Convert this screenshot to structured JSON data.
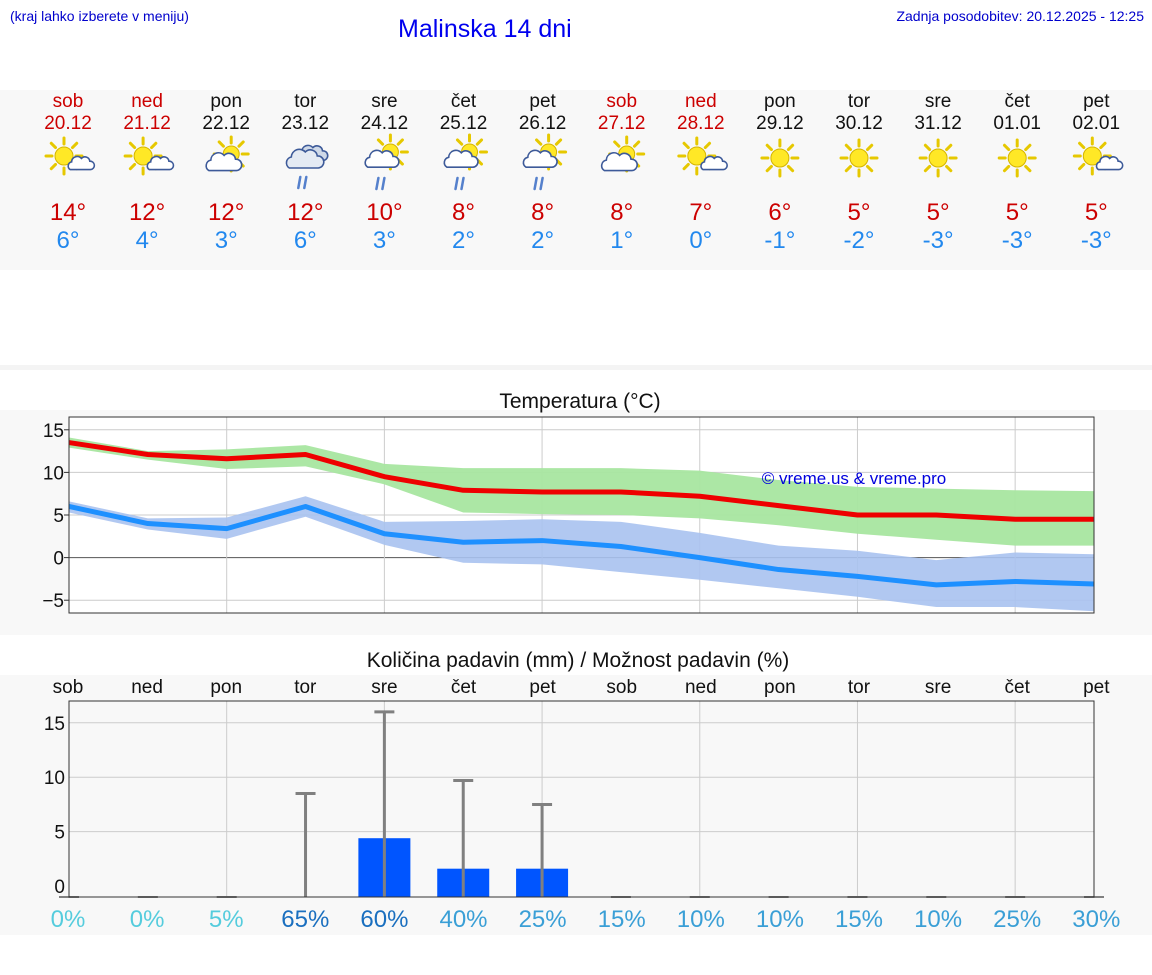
{
  "header": {
    "menu_hint": "(kraj lahko izberete v meniju)",
    "title": "Malinska 14 dni",
    "updated": "Zadnja posodobitev: 20.12.2025 - 12:25"
  },
  "colors": {
    "weekend": "#cc0000",
    "weekday": "#111111",
    "tmax": "#cc0000",
    "tmin": "#2288ee",
    "max_line": "#ee0000",
    "max_band": "#a8e6a0",
    "min_line": "#1e90ff",
    "min_band": "#a8c2f0",
    "bar": "#0055ff",
    "whisker": "#808080"
  },
  "forecast": {
    "days": [
      {
        "dow": "sob",
        "date": "20.12",
        "weekend": true,
        "icon": "sun-cloud-icon",
        "tmax": "14°",
        "tmin": "6°"
      },
      {
        "dow": "ned",
        "date": "21.12",
        "weekend": true,
        "icon": "sun-cloud-icon",
        "tmax": "12°",
        "tmin": "4°"
      },
      {
        "dow": "pon",
        "date": "22.12",
        "weekend": false,
        "icon": "partly-cloudy-icon",
        "tmax": "12°",
        "tmin": "3°"
      },
      {
        "dow": "tor",
        "date": "23.12",
        "weekend": false,
        "icon": "cloudy-rain-icon",
        "tmax": "12°",
        "tmin": "6°"
      },
      {
        "dow": "sre",
        "date": "24.12",
        "weekend": false,
        "icon": "partly-cloudy-rain-icon",
        "tmax": "10°",
        "tmin": "3°"
      },
      {
        "dow": "čet",
        "date": "25.12",
        "weekend": false,
        "icon": "partly-cloudy-rain-icon",
        "tmax": "8°",
        "tmin": "2°"
      },
      {
        "dow": "pet",
        "date": "26.12",
        "weekend": false,
        "icon": "partly-cloudy-rain-icon",
        "tmax": "8°",
        "tmin": "2°"
      },
      {
        "dow": "sob",
        "date": "27.12",
        "weekend": true,
        "icon": "partly-cloudy-icon",
        "tmax": "8°",
        "tmin": "1°"
      },
      {
        "dow": "ned",
        "date": "28.12",
        "weekend": true,
        "icon": "sun-cloud-icon",
        "tmax": "7°",
        "tmin": "0°"
      },
      {
        "dow": "pon",
        "date": "29.12",
        "weekend": false,
        "icon": "sun-icon",
        "tmax": "6°",
        "tmin": "-1°"
      },
      {
        "dow": "tor",
        "date": "30.12",
        "weekend": false,
        "icon": "sun-icon",
        "tmax": "5°",
        "tmin": "-2°"
      },
      {
        "dow": "sre",
        "date": "31.12",
        "weekend": false,
        "icon": "sun-icon",
        "tmax": "5°",
        "tmin": "-3°"
      },
      {
        "dow": "čet",
        "date": "01.01",
        "weekend": false,
        "icon": "sun-icon",
        "tmax": "5°",
        "tmin": "-3°"
      },
      {
        "dow": "pet",
        "date": "02.01",
        "weekend": false,
        "icon": "sun-cloud-icon",
        "tmax": "5°",
        "tmin": "-3°"
      }
    ]
  },
  "chart_data": [
    {
      "type": "line",
      "title": "Temperatura (°C)",
      "xlabel": "",
      "ylabel": "",
      "ylim": [
        -6.5,
        16.5
      ],
      "yticks": [
        15,
        10,
        5,
        0,
        -5
      ],
      "ytick_labels": [
        "15",
        "10",
        "5",
        "0",
        "−5"
      ],
      "x": [
        0,
        1,
        2,
        3,
        4,
        5,
        6,
        7,
        8,
        9,
        10,
        11,
        12,
        13
      ],
      "grid": true,
      "watermark": "© vreme.us & vreme.pro",
      "series": [
        {
          "name": "max",
          "values": [
            13.5,
            12.1,
            11.6,
            12.1,
            9.5,
            7.9,
            7.7,
            7.7,
            7.2,
            6.1,
            5.0,
            5.0,
            4.5,
            4.5
          ],
          "band_low": [
            12.9,
            11.5,
            10.4,
            10.7,
            8.6,
            5.3,
            5.1,
            5.0,
            4.6,
            3.8,
            2.8,
            2.1,
            1.4,
            1.4
          ],
          "band_high": [
            14.1,
            12.5,
            12.7,
            13.2,
            11.0,
            10.5,
            10.5,
            10.5,
            10.2,
            9.1,
            8.3,
            8.1,
            7.9,
            7.8
          ]
        },
        {
          "name": "min",
          "values": [
            6.0,
            4.0,
            3.4,
            6.0,
            2.8,
            1.8,
            2.0,
            1.3,
            0.0,
            -1.4,
            -2.2,
            -3.2,
            -2.8,
            -3.1
          ],
          "band_low": [
            5.3,
            3.3,
            2.2,
            4.8,
            1.5,
            -0.6,
            -0.8,
            -1.7,
            -2.6,
            -3.6,
            -4.6,
            -5.8,
            -5.8,
            -6.3
          ],
          "band_high": [
            6.6,
            4.6,
            4.7,
            7.2,
            4.2,
            4.3,
            4.5,
            4.2,
            2.9,
            1.4,
            0.8,
            -0.3,
            0.6,
            0.4
          ]
        }
      ]
    },
    {
      "type": "bar",
      "title": "Količina padavin (mm) / Možnost padavin (%)",
      "categories": [
        "sob",
        "ned",
        "pon",
        "tor",
        "sre",
        "čet",
        "pet",
        "sob",
        "ned",
        "pon",
        "tor",
        "sre",
        "čet",
        "pet"
      ],
      "ylim": [
        -1,
        17
      ],
      "yticks": [
        15,
        10,
        5,
        0
      ],
      "ytick_labels": [
        "15",
        "10",
        "5",
        "0"
      ],
      "values": [
        0,
        0,
        0,
        0,
        4.4,
        1.6,
        1.6,
        0,
        0,
        0,
        0,
        0,
        0,
        0
      ],
      "whisker_max": [
        0,
        0,
        0,
        8.5,
        16.0,
        9.7,
        7.5,
        0,
        0,
        0,
        0,
        0,
        0,
        0
      ],
      "probability": [
        "0%",
        "0%",
        "5%",
        "65%",
        "60%",
        "40%",
        "25%",
        "15%",
        "10%",
        "10%",
        "15%",
        "10%",
        "25%",
        "30%"
      ],
      "probability_colors": [
        "#55ccdd",
        "#55ccdd",
        "#55ccdd",
        "#1a6fbf",
        "#1a6fbf",
        "#3a9fd6",
        "#3a9fd6",
        "#3a9fd6",
        "#3a9fd6",
        "#3a9fd6",
        "#3a9fd6",
        "#3a9fd6",
        "#3a9fd6",
        "#3a9fd6"
      ]
    }
  ]
}
